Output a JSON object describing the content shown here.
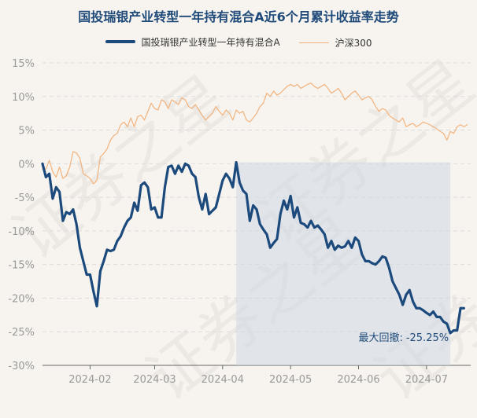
{
  "chart_data": {
    "type": "line",
    "title": "国投瑞银产业转型一年持有混合A近6个月累计收益率走势",
    "xlabel": "",
    "ylabel": "",
    "ylim": [
      -30,
      15
    ],
    "yticks": [
      15,
      10,
      5,
      0,
      -5,
      -10,
      -15,
      -20,
      -25,
      -30
    ],
    "ytick_labels": [
      "15%",
      "10%",
      "5%",
      "0%",
      "-5%",
      "-10%",
      "-15%",
      "-20%",
      "-25%",
      "-30%"
    ],
    "x_range": [
      0,
      126
    ],
    "xtick_positions": [
      14,
      33,
      53,
      73,
      93,
      113
    ],
    "xtick_labels": [
      "2024-02",
      "2024-03",
      "2024-04",
      "2024-05",
      "2024-06",
      "2024-07"
    ],
    "grid": true,
    "legend_position": "top-center",
    "series": [
      {
        "name": "国投瑞银产业转型一年持有混合A",
        "color": "#1c4a7d",
        "values": [
          0,
          -2,
          -1.5,
          -5.2,
          -3.5,
          -4.2,
          -8.5,
          -7.2,
          -7.5,
          -6.8,
          -9,
          -12.5,
          -14.5,
          -16.5,
          -16.5,
          -19,
          -21.2,
          -16,
          -14.5,
          -12.8,
          -13,
          -12.8,
          -11.5,
          -10.8,
          -9.5,
          -8.5,
          -8,
          -5.8,
          -7,
          -3.2,
          -2.8,
          -3.5,
          -6.8,
          -6.5,
          -8,
          -8,
          -3.5,
          -0.5,
          -0.3,
          -1.5,
          -0.3,
          -1.2,
          0,
          -0.3,
          -1.5,
          -2,
          -5,
          -6.8,
          -4.5,
          -7.5,
          -7,
          -6.5,
          -4.5,
          -2.5,
          -1.5,
          -2.2,
          -3.5,
          0.2,
          -2.8,
          -4,
          -4.5,
          -8.5,
          -6.2,
          -6.8,
          -9,
          -9.8,
          -10.5,
          -12.5,
          -11.8,
          -11.2,
          -7.5,
          -5.5,
          -6.8,
          -4.8,
          -8,
          -6.5,
          -8.8,
          -9,
          -9.5,
          -8.5,
          -9.5,
          -9.2,
          -9.8,
          -10.5,
          -12.5,
          -11.5,
          -12.8,
          -12.2,
          -12.5,
          -12.3,
          -11.5,
          -12.5,
          -11,
          -11.5,
          -13.5,
          -14.5,
          -14.5,
          -14.8,
          -15,
          -14.5,
          -13.8,
          -14,
          -15.5,
          -17.5,
          -18.5,
          -19.5,
          -21,
          -19.5,
          -18.8,
          -20.5,
          -21.5,
          -21.5,
          -21.8,
          -22.2,
          -22.5,
          -22,
          -22.8,
          -22.8,
          -23.5,
          -23.8,
          -25.2,
          -24.8,
          -24.8,
          -21.5,
          -21.5
        ],
        "annotation": {
          "label": "最大回撤:",
          "value": "-25.25%",
          "from_index": 57,
          "to_index": 120
        }
      },
      {
        "name": "沪深300",
        "color": "#f2b27c",
        "values": [
          -0.8,
          -0.8,
          0.5,
          -1.2,
          -2,
          -0.5,
          -2.2,
          -1.8,
          -0.5,
          1.8,
          1.6,
          0.8,
          -1.5,
          -1.8,
          -2.2,
          -3,
          -2.5,
          1,
          1.5,
          2.2,
          3.5,
          4.2,
          4.5,
          5.8,
          6.2,
          5.5,
          6.8,
          5.5,
          7,
          7.2,
          6.5,
          7.8,
          9,
          8.2,
          8,
          9.5,
          9.2,
          8.2,
          9.5,
          9.2,
          8.8,
          9.8,
          9.5,
          8.5,
          8.2,
          8.8,
          8,
          7.2,
          6.5,
          7,
          7.5,
          8.5,
          7.8,
          7.2,
          8,
          7.5,
          6.5,
          8,
          7.5,
          7.8,
          6.5,
          6.2,
          6.8,
          7.5,
          8.5,
          9,
          10.5,
          10,
          10.8,
          10.2,
          10.5,
          11,
          11.5,
          11.8,
          11.5,
          11.8,
          11.2,
          11.5,
          11.8,
          12,
          11.5,
          11.2,
          11.5,
          11.8,
          11.2,
          10.5,
          10.8,
          11.2,
          10.5,
          9.5,
          10,
          10.5,
          10.8,
          10.2,
          9.5,
          9.8,
          10,
          9.5,
          8.5,
          7.8,
          8.2,
          8,
          7.2,
          6.8,
          6.5,
          6.2,
          6.8,
          5.5,
          5.8,
          6,
          5.5,
          5.8,
          6.2,
          6,
          5.8,
          5.5,
          5.2,
          4.8,
          4.5,
          3.5,
          4.8,
          4.5,
          5.5,
          5.8,
          5.5,
          5.8
        ]
      }
    ]
  },
  "watermarks": [
    "证券之星",
    "证券之星",
    "证券之星",
    "证券之星"
  ]
}
